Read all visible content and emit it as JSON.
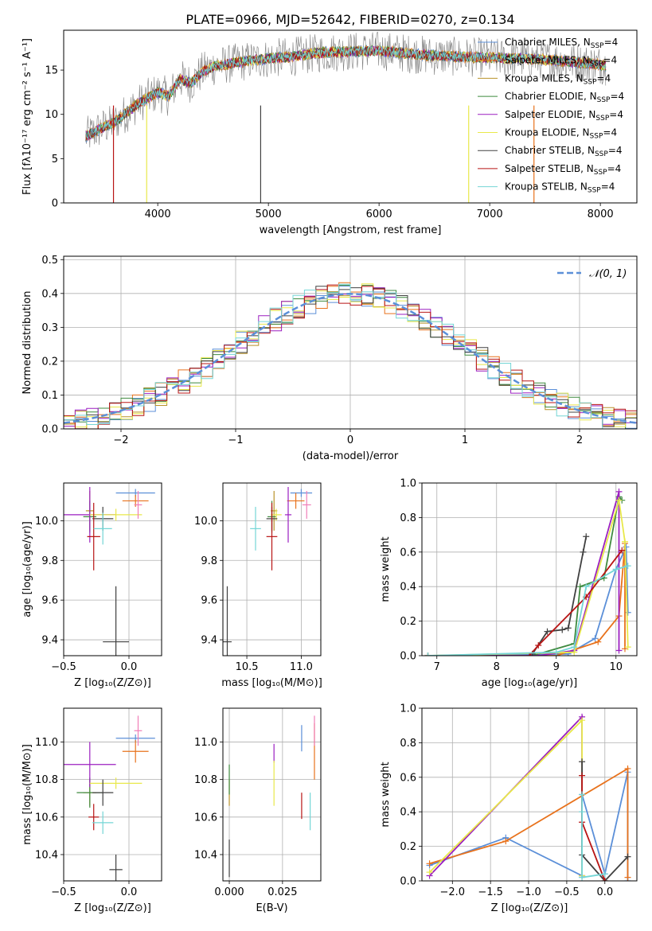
{
  "title": "PLATE=0966, MJD=52642, FIBERID=0270, z=0.134",
  "colors": [
    "#5b8fd8",
    "#e8721c",
    "#b8922a",
    "#3f8a3f",
    "#9b1fc0",
    "#e8e84a",
    "#404040",
    "#b81414",
    "#74d6d6"
  ],
  "chart_data": [
    {
      "id": "spectrum",
      "type": "line",
      "xlabel": "wavelength [Angstrom, rest frame]",
      "ylabel": "Flux [fλ10⁻¹⁷ erg cm⁻² s⁻¹ A⁻¹]",
      "xlim": [
        3150,
        8330
      ],
      "ylim": [
        0,
        19.5
      ],
      "xticks": [
        "4000",
        "5000",
        "6000",
        "7000",
        "8000"
      ],
      "yticks": [
        "0",
        "5",
        "10",
        "15"
      ],
      "grid": false,
      "legend_position": "right",
      "observed_color": "#808080",
      "continuum": {
        "x": [
          3350,
          3500,
          3600,
          3700,
          3800,
          3900,
          4000,
          4100,
          4200,
          4300,
          4400,
          4500,
          4600,
          4800,
          5000,
          5200,
          5500,
          6000,
          6500,
          7000,
          7500,
          8000,
          8050
        ],
        "y": [
          7.5,
          8.5,
          9.0,
          10.0,
          11.0,
          11.8,
          12.5,
          12.0,
          14.0,
          13.5,
          14.8,
          15.4,
          15.6,
          16.0,
          16.3,
          16.5,
          17.0,
          17.2,
          16.6,
          16.4,
          16.2,
          15.6,
          15.5
        ]
      },
      "series": [
        {
          "name": "Chabrier MILES, N",
          "sub": "SSP",
          "suffix": "=4",
          "color": "#5b8fd8"
        },
        {
          "name": "Salpeter MILES, N",
          "sub": "SSP",
          "suffix": "=4",
          "color": "#e8721c"
        },
        {
          "name": "Kroupa MILES, N",
          "sub": "SSP",
          "suffix": "=4",
          "color": "#b8922a"
        },
        {
          "name": "Chabrier ELODIE, N",
          "sub": "SSP",
          "suffix": "=4",
          "color": "#3f8a3f"
        },
        {
          "name": "Salpeter ELODIE, N",
          "sub": "SSP",
          "suffix": "=4",
          "color": "#9b1fc0"
        },
        {
          "name": "Kroupa ELODIE, N",
          "sub": "SSP",
          "suffix": "=4",
          "color": "#e8e84a"
        },
        {
          "name": "Chabrier STELIB, N",
          "sub": "SSP",
          "suffix": "=4",
          "color": "#404040"
        },
        {
          "name": "Salpeter STELIB, N",
          "sub": "SSP",
          "suffix": "=4",
          "color": "#b81414"
        },
        {
          "name": "Kroupa STELIB, N",
          "sub": "SSP",
          "suffix": "=4",
          "color": "#74d6d6"
        }
      ]
    },
    {
      "id": "residuals",
      "type": "bar",
      "xlabel": "(data-model)/error",
      "ylabel": "Normed distribution",
      "xlim": [
        -2.5,
        2.5
      ],
      "ylim": [
        0,
        0.51
      ],
      "xticks": [
        "−2",
        "−1",
        "0",
        "1",
        "2"
      ],
      "yticks": [
        "0.0",
        "0.1",
        "0.2",
        "0.3",
        "0.4",
        "0.5"
      ],
      "grid": true,
      "legend_position": "top-right",
      "reference_label": "𝒩(0, 1)",
      "reference_color": "#5b8fd8",
      "bin_width": 0.1
    },
    {
      "id": "age-vs-z",
      "type": "scatter",
      "xlabel": "Z [log₁₀(Z/Z⊙)]",
      "ylabel": "age  [log₁₀(age/yr)]",
      "xlim": [
        -0.5,
        0.25
      ],
      "ylim": [
        9.32,
        10.19
      ],
      "xticks": [
        "−0.5",
        "0.0"
      ],
      "yticks": [
        "9.4",
        "9.6",
        "9.8",
        "10.0"
      ],
      "grid": true,
      "points": [
        {
          "x": 0.05,
          "y": 10.14,
          "xerr": 0.15,
          "yerr": 0.02,
          "color": "#5b8fd8"
        },
        {
          "x": 0.05,
          "y": 10.1,
          "xerr": 0.1,
          "yerr": 0.03,
          "color": "#e8721c"
        },
        {
          "x": -0.3,
          "y": 10.05,
          "xerr": 0.03,
          "yerr": 0.1,
          "color": "#b8922a"
        },
        {
          "x": -0.3,
          "y": 10.02,
          "xerr": 0.05,
          "yerr": 0.08,
          "color": "#3f8a3f"
        },
        {
          "x": -0.3,
          "y": 10.03,
          "xerr": 0.2,
          "yerr": 0.14,
          "color": "#9b1fc0"
        },
        {
          "x": -0.1,
          "y": 10.03,
          "xerr": 0.2,
          "yerr": 0.03,
          "color": "#e8e84a"
        },
        {
          "x": -0.2,
          "y": 10.01,
          "xerr": 0.08,
          "yerr": 0.06,
          "color": "#404040"
        },
        {
          "x": -0.27,
          "y": 9.92,
          "xerr": 0.05,
          "yerr": 0.17,
          "color": "#b81414"
        },
        {
          "x": -0.2,
          "y": 9.96,
          "xerr": 0.07,
          "yerr": 0.08,
          "color": "#74d6d6"
        },
        {
          "x": 0.07,
          "y": 10.08,
          "xerr": 0.03,
          "yerr": 0.07,
          "color": "#f07eb8"
        },
        {
          "x": -0.1,
          "y": 9.39,
          "xerr": 0.1,
          "yerr": 0.28,
          "color": "#404040"
        }
      ]
    },
    {
      "id": "age-vs-mass",
      "type": "scatter",
      "xlabel": "mass [log₁₀(M/M⊙)]",
      "ylabel": "",
      "xlim": [
        10.28,
        11.18
      ],
      "ylim": [
        9.32,
        10.19
      ],
      "xticks": [
        "10.5",
        "11.0"
      ],
      "yticks": [
        "9.4",
        "9.6",
        "9.8",
        "10.0"
      ],
      "grid": true,
      "points": [
        {
          "x": 11.0,
          "y": 10.14,
          "xerr": 0.1,
          "yerr": 0.02,
          "color": "#5b8fd8"
        },
        {
          "x": 10.95,
          "y": 10.1,
          "xerr": 0.08,
          "yerr": 0.04,
          "color": "#e8721c"
        },
        {
          "x": 10.75,
          "y": 10.05,
          "xerr": 0.03,
          "yerr": 0.1,
          "color": "#b8922a"
        },
        {
          "x": 10.73,
          "y": 10.02,
          "xerr": 0.04,
          "yerr": 0.08,
          "color": "#3f8a3f"
        },
        {
          "x": 10.88,
          "y": 10.03,
          "xerr": 0.03,
          "yerr": 0.14,
          "color": "#9b1fc0"
        },
        {
          "x": 10.77,
          "y": 10.03,
          "xerr": 0.05,
          "yerr": 0.03,
          "color": "#e8e84a"
        },
        {
          "x": 10.73,
          "y": 10.01,
          "xerr": 0.05,
          "yerr": 0.06,
          "color": "#404040"
        },
        {
          "x": 10.73,
          "y": 9.92,
          "xerr": 0.05,
          "yerr": 0.17,
          "color": "#b81414"
        },
        {
          "x": 10.58,
          "y": 9.96,
          "xerr": 0.05,
          "yerr": 0.11,
          "color": "#74d6d6"
        },
        {
          "x": 11.05,
          "y": 10.08,
          "xerr": 0.04,
          "yerr": 0.07,
          "color": "#f07eb8"
        },
        {
          "x": 10.32,
          "y": 9.39,
          "xerr": 0.04,
          "yerr": 0.28,
          "color": "#404040"
        }
      ]
    },
    {
      "id": "mass-weight-vs-age",
      "type": "line",
      "xlabel": "age  [log₁₀(age/yr)]",
      "ylabel": "mass weight",
      "xlim": [
        6.75,
        10.35
      ],
      "ylim": [
        0,
        1.0
      ],
      "xticks": [
        "7",
        "8",
        "9",
        "10"
      ],
      "yticks": [
        "0.0",
        "0.2",
        "0.4",
        "0.6",
        "0.8",
        "1.0"
      ],
      "grid": true,
      "series": [
        {
          "color": "#5b8fd8",
          "x": [
            6.85,
            9.2,
            9.65,
            10.0,
            10.17,
            10.2
          ],
          "y": [
            0.0,
            0.01,
            0.1,
            0.5,
            0.63,
            0.25
          ]
        },
        {
          "color": "#e8721c",
          "x": [
            6.85,
            9.0,
            9.7,
            10.05,
            10.15,
            10.15
          ],
          "y": [
            0.0,
            0.0,
            0.08,
            0.23,
            0.65,
            0.04
          ]
        },
        {
          "color": "#3f8a3f",
          "x": [
            6.85,
            8.6,
            9.3,
            9.4,
            9.8,
            10.05,
            10.1
          ],
          "y": [
            0.0,
            0.0,
            0.07,
            0.4,
            0.45,
            0.92,
            0.9
          ]
        },
        {
          "color": "#9b1fc0",
          "x": [
            6.85,
            8.7,
            9.3,
            10.05,
            10.05
          ],
          "y": [
            0.0,
            0.0,
            0.03,
            0.95,
            0.03
          ]
        },
        {
          "color": "#e8e84a",
          "x": [
            6.85,
            9.3,
            10.05,
            10.15,
            10.2
          ],
          "y": [
            0.0,
            0.02,
            0.9,
            0.66,
            0.05
          ]
        },
        {
          "color": "#404040",
          "x": [
            8.6,
            8.85,
            9.1,
            9.2,
            9.45,
            9.5
          ],
          "y": [
            0.01,
            0.14,
            0.15,
            0.16,
            0.6,
            0.69
          ]
        },
        {
          "color": "#b81414",
          "x": [
            8.55,
            8.7,
            9.5,
            10.1
          ],
          "y": [
            0.0,
            0.06,
            0.34,
            0.61
          ]
        },
        {
          "color": "#74d6d6",
          "x": [
            6.85,
            9.0,
            9.3,
            9.5,
            10.0,
            10.2
          ],
          "y": [
            0.0,
            0.02,
            0.05,
            0.4,
            0.5,
            0.52
          ]
        }
      ]
    },
    {
      "id": "mass-vs-z",
      "type": "scatter",
      "xlabel": "Z [log₁₀(Z/Z⊙)]",
      "ylabel": "mass [log₁₀(M/M⊙)]",
      "xlim": [
        -0.5,
        0.25
      ],
      "ylim": [
        10.26,
        11.18
      ],
      "xticks": [
        "−0.5",
        "0.0"
      ],
      "yticks": [
        "10.4",
        "10.6",
        "10.8",
        "11.0"
      ],
      "grid": true,
      "points": [
        {
          "x": 0.05,
          "y": 11.02,
          "xerr": 0.15,
          "yerr": 0.02,
          "color": "#5b8fd8"
        },
        {
          "x": 0.05,
          "y": 10.95,
          "xerr": 0.1,
          "yerr": 0.06,
          "color": "#e8721c"
        },
        {
          "x": -0.3,
          "y": 10.73,
          "xerr": 0.05,
          "yerr": 0.07,
          "color": "#b8922a"
        },
        {
          "x": -0.3,
          "y": 10.73,
          "xerr": 0.1,
          "yerr": 0.08,
          "color": "#3f8a3f"
        },
        {
          "x": -0.3,
          "y": 10.88,
          "xerr": 0.2,
          "yerr": 0.12,
          "color": "#9b1fc0"
        },
        {
          "x": -0.1,
          "y": 10.78,
          "xerr": 0.2,
          "yerr": 0.03,
          "color": "#e8e84a"
        },
        {
          "x": -0.2,
          "y": 10.73,
          "xerr": 0.08,
          "yerr": 0.07,
          "color": "#404040"
        },
        {
          "x": -0.27,
          "y": 10.6,
          "xerr": 0.04,
          "yerr": 0.07,
          "color": "#b81414"
        },
        {
          "x": -0.2,
          "y": 10.57,
          "xerr": 0.08,
          "yerr": 0.06,
          "color": "#74d6d6"
        },
        {
          "x": 0.07,
          "y": 11.06,
          "xerr": 0.03,
          "yerr": 0.08,
          "color": "#f07eb8"
        },
        {
          "x": -0.1,
          "y": 10.32,
          "xerr": 0.05,
          "yerr": 0.08,
          "color": "#404040"
        }
      ]
    },
    {
      "id": "mass-vs-ebv",
      "type": "scatter",
      "xlabel": "E(B-V)",
      "ylabel": "",
      "xlim": [
        -0.003,
        0.043
      ],
      "ylim": [
        10.26,
        11.18
      ],
      "xticks": [
        "0.000",
        "0.025"
      ],
      "yticks": [
        "10.4",
        "10.6",
        "10.8",
        "11.0"
      ],
      "grid": true,
      "points": [
        {
          "x": 0.034,
          "y": 11.02,
          "xerr": 0,
          "yerr": 0.07,
          "color": "#5b8fd8"
        },
        {
          "x": 0.04,
          "y": 10.95,
          "xerr": 0,
          "yerr": 0.15,
          "color": "#e8721c"
        },
        {
          "x": 0.0,
          "y": 10.73,
          "xerr": 0,
          "yerr": 0.07,
          "color": "#b8922a"
        },
        {
          "x": 0.0,
          "y": 10.8,
          "xerr": 0,
          "yerr": 0.08,
          "color": "#3f8a3f"
        },
        {
          "x": 0.021,
          "y": 10.94,
          "xerr": 0,
          "yerr": 0.05,
          "color": "#9b1fc0"
        },
        {
          "x": 0.021,
          "y": 10.78,
          "xerr": 0,
          "yerr": 0.12,
          "color": "#e8e84a"
        },
        {
          "x": 0.0,
          "y": 10.38,
          "xerr": 0,
          "yerr": 0.1,
          "color": "#404040"
        },
        {
          "x": 0.034,
          "y": 10.66,
          "xerr": 0,
          "yerr": 0.07,
          "color": "#b81414"
        },
        {
          "x": 0.038,
          "y": 10.63,
          "xerr": 0,
          "yerr": 0.1,
          "color": "#74d6d6"
        },
        {
          "x": 0.04,
          "y": 11.06,
          "xerr": 0,
          "yerr": 0.08,
          "color": "#f07eb8"
        }
      ]
    },
    {
      "id": "mass-weight-vs-z",
      "type": "line",
      "xlabel": "Z [log₁₀(Z/Z⊙)]",
      "ylabel": "mass weight",
      "xlim": [
        -2.4,
        0.42
      ],
      "ylim": [
        0,
        1.0
      ],
      "xticks": [
        "−2.0",
        "−1.5",
        "−1.0",
        "−0.5",
        "0.0"
      ],
      "yticks": [
        "0.0",
        "0.2",
        "0.4",
        "0.6",
        "0.8",
        "1.0"
      ],
      "grid": true,
      "series": [
        {
          "color": "#5b8fd8",
          "x": [
            -2.3,
            -1.3,
            -0.3,
            -0.3,
            0.0,
            0.3,
            0.3
          ],
          "y": [
            0.09,
            0.25,
            0.03,
            0.5,
            0.04,
            0.63,
            0.0
          ]
        },
        {
          "color": "#e8721c",
          "x": [
            -2.3,
            -1.3,
            0.3,
            0.3
          ],
          "y": [
            0.1,
            0.23,
            0.65,
            0.02
          ]
        },
        {
          "color": "#9b1fc0",
          "x": [
            -2.3,
            -0.3,
            -0.3
          ],
          "y": [
            0.03,
            0.95,
            0.03
          ]
        },
        {
          "color": "#e8e84a",
          "x": [
            -2.3,
            -0.3,
            -0.3
          ],
          "y": [
            0.05,
            0.93,
            0.03
          ]
        },
        {
          "color": "#404040",
          "x": [
            -0.3,
            -0.3,
            0.0,
            0.3
          ],
          "y": [
            0.69,
            0.15,
            0.0,
            0.14
          ]
        },
        {
          "color": "#b81414",
          "x": [
            -0.3,
            -0.3,
            0.0
          ],
          "y": [
            0.61,
            0.34,
            0.0
          ]
        },
        {
          "color": "#74d6d6",
          "x": [
            -0.3,
            -0.3,
            -0.3,
            0.0
          ],
          "y": [
            0.4,
            0.5,
            0.02,
            0.04
          ]
        }
      ]
    }
  ]
}
